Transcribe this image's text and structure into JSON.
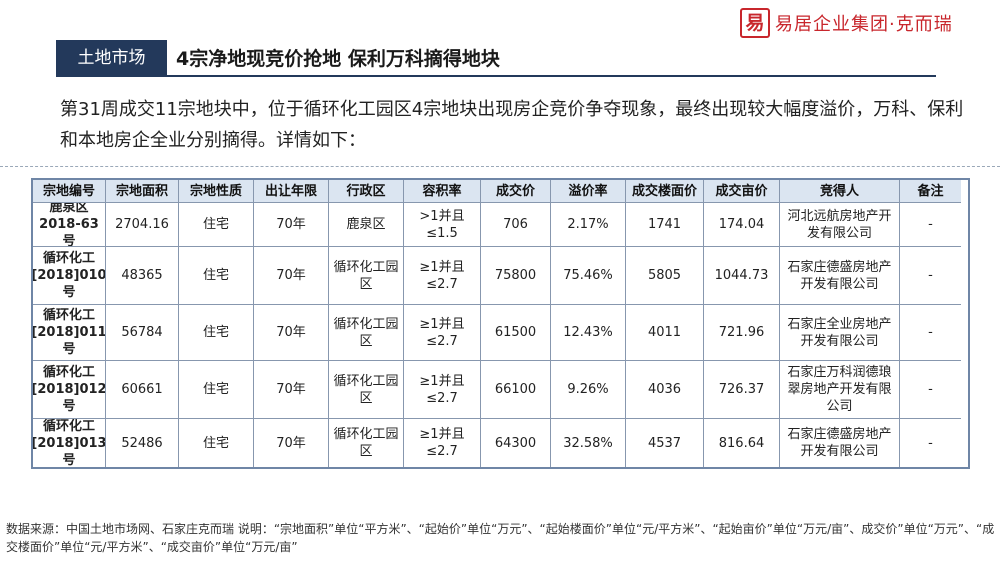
{
  "logo": {
    "seal_char": "易",
    "brand_text": "易居企业集团·克而瑞"
  },
  "header": {
    "tag": "土地市场",
    "headline": "4宗净地现竞价抢地 保利万科摘得地块"
  },
  "intro": "第31周成交11宗地块中，位于循环化工园区4宗地块出现房企竞价争夺现象，最终出现较大幅度溢价，万科、保利和本地房企全业分别摘得。详情如下：",
  "table": {
    "headers": [
      "宗地编号",
      "宗地面积",
      "宗地性质",
      "出让年限",
      "行政区",
      "容积率",
      "成交价",
      "溢价率",
      "成交楼面价",
      "成交亩价",
      "竞得人",
      "备注"
    ],
    "rows": [
      [
        "鹿泉区2018-63号",
        "2704.16",
        "住宅",
        "70年",
        "鹿泉区",
        ">1并且≤1.5",
        "706",
        "2.17%",
        "1741",
        "174.04",
        "河北远航房地产开发有限公司",
        "-"
      ],
      [
        "循环化工[2018]010号",
        "48365",
        "住宅",
        "70年",
        "循环化工园区",
        "≥1并且≤2.7",
        "75800",
        "75.46%",
        "5805",
        "1044.73",
        "石家庄德盛房地产开发有限公司",
        "-"
      ],
      [
        "循环化工[2018]011号",
        "56784",
        "住宅",
        "70年",
        "循环化工园区",
        "≥1并且≤2.7",
        "61500",
        "12.43%",
        "4011",
        "721.96",
        "石家庄全业房地产开发有限公司",
        "-"
      ],
      [
        "循环化工[2018]012号",
        "60661",
        "住宅",
        "70年",
        "循环化工园区",
        "≥1并且≤2.7",
        "66100",
        "9.26%",
        "4036",
        "726.37",
        "石家庄万科润德琅翠房地产开发有限公司",
        "-"
      ],
      [
        "循环化工[2018]013号",
        "52486",
        "住宅",
        "70年",
        "循环化工园区",
        "≥1并且≤2.7",
        "64300",
        "32.58%",
        "4537",
        "816.64",
        "石家庄德盛房地产开发有限公司",
        "-"
      ]
    ]
  },
  "footer": {
    "source": "数据来源：中国土地市场网、石家庄克而瑞 说明：“宗地面积”单位“平方米”、“起始价”单位“万元”、“起始楼面价”单位“元/平方米”、“起始亩价”单位“万元/亩”、成交价”单位“万元”、“成交楼面价”单位“元/平方米”、“成交亩价”单位“万元/亩”"
  }
}
